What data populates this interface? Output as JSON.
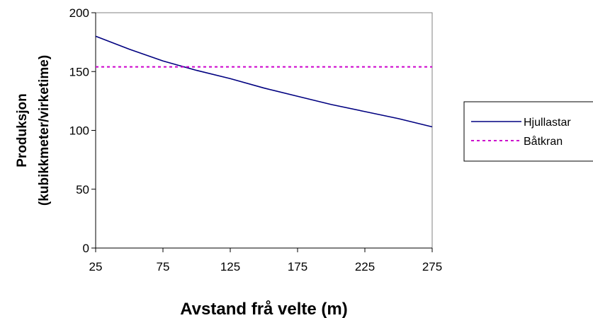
{
  "chart_data": {
    "type": "line",
    "title": "",
    "xlabel": "Avstand frå velte (m)",
    "ylabel_lines": [
      "Produksjon",
      "(kubikkmeter/virketime)"
    ],
    "x_ticks": [
      "25",
      "75",
      "125",
      "175",
      "225",
      "275"
    ],
    "y_ticks": [
      "0",
      "50",
      "100",
      "150",
      "200"
    ],
    "xlim": [
      25,
      275
    ],
    "ylim": [
      0,
      200
    ],
    "grid": false,
    "legend_position": "right",
    "series": [
      {
        "name": "Hjullastar",
        "color": "#000080",
        "style": "solid",
        "x": [
          25,
          50,
          75,
          100,
          125,
          150,
          175,
          200,
          225,
          250,
          275
        ],
        "y": [
          180,
          169,
          159,
          151,
          144,
          136,
          129,
          122,
          116,
          110,
          103
        ]
      },
      {
        "name": "Båtkran",
        "color": "#cc00cc",
        "style": "dashed",
        "x": [
          25,
          275
        ],
        "y": [
          154,
          154
        ]
      }
    ]
  }
}
